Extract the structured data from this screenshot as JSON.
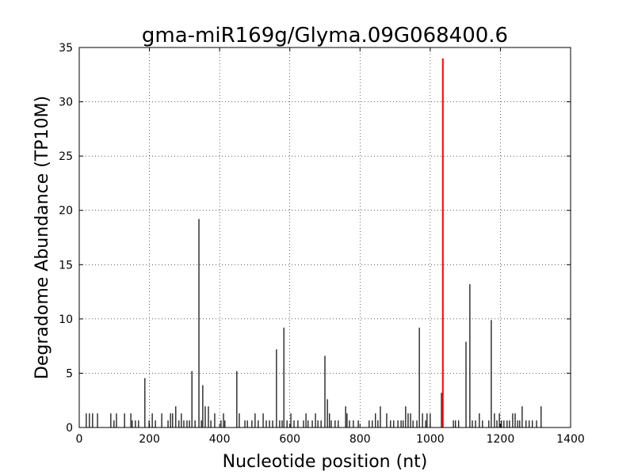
{
  "chart_data": {
    "type": "stem",
    "title": "gma-miR169g/Glyma.09G068400.6",
    "x_label": "Nucleotide position (nt)",
    "y_label": "Degradome Abundance (TP10M)",
    "x": [
      20,
      29,
      38,
      52,
      90,
      99,
      106,
      129,
      147,
      151,
      160,
      169,
      187,
      199,
      208,
      217,
      235,
      253,
      260,
      266,
      275,
      284,
      291,
      298,
      307,
      314,
      321,
      330,
      341,
      348,
      352,
      359,
      368,
      375,
      386,
      404,
      411,
      415,
      449,
      456,
      472,
      479,
      492,
      501,
      510,
      524,
      533,
      542,
      551,
      562,
      571,
      578,
      583,
      592,
      603,
      612,
      623,
      639,
      646,
      652,
      664,
      673,
      680,
      689,
      700,
      707,
      713,
      718,
      729,
      738,
      759,
      763,
      770,
      781,
      795,
      826,
      835,
      844,
      851,
      858,
      876,
      887,
      896,
      908,
      917,
      923,
      930,
      937,
      944,
      951,
      962,
      969,
      978,
      987,
      991,
      1000,
      1032,
      1066,
      1072,
      1081,
      1102,
      1113,
      1120,
      1129,
      1140,
      1149,
      1167,
      1174,
      1183,
      1190,
      1197,
      1203,
      1210,
      1219,
      1226,
      1235,
      1242,
      1249,
      1255,
      1262,
      1273,
      1282,
      1291,
      1303,
      1316
    ],
    "values": [
      1.3,
      1.3,
      1.3,
      1.3,
      1.3,
      0.65,
      1.3,
      1.3,
      1.3,
      0.65,
      0.65,
      0.65,
      4.55,
      0.65,
      1.3,
      0.65,
      1.3,
      0.65,
      1.3,
      1.3,
      1.95,
      0.65,
      1.3,
      0.65,
      0.65,
      0.65,
      5.2,
      0.65,
      19.2,
      0.65,
      3.9,
      1.95,
      1.95,
      0.65,
      1.3,
      0.65,
      1.3,
      0.65,
      5.2,
      1.3,
      0.65,
      0.65,
      0.65,
      1.3,
      0.65,
      1.3,
      0.65,
      0.65,
      0.65,
      7.2,
      0.65,
      0.65,
      9.2,
      0.65,
      1.3,
      0.65,
      0.65,
      0.65,
      1.3,
      0.65,
      0.65,
      1.3,
      0.65,
      0.65,
      6.6,
      2.6,
      1.3,
      0.65,
      0.65,
      0.65,
      1.95,
      1.3,
      0.65,
      0.65,
      0.65,
      0.65,
      0.65,
      1.3,
      0.65,
      1.95,
      1.3,
      0.65,
      0.65,
      0.65,
      0.65,
      0.65,
      1.95,
      1.3,
      1.3,
      0.65,
      0.65,
      9.2,
      1.3,
      0.65,
      1.3,
      1.3,
      3.2,
      0.65,
      0.65,
      0.65,
      7.9,
      13.2,
      0.65,
      0.65,
      1.3,
      0.65,
      0.65,
      9.9,
      1.3,
      0.65,
      1.3,
      0.65,
      0.65,
      0.65,
      0.65,
      1.3,
      1.3,
      0.65,
      0.65,
      1.95,
      0.65,
      0.65,
      0.65,
      0.65,
      1.95
    ],
    "color": "#000000",
    "highlight": {
      "x": [
        1036
      ],
      "values": [
        34
      ],
      "color": "#ff0000"
    },
    "xlim": [
      0,
      1400
    ],
    "xticks": [
      0,
      200,
      400,
      600,
      800,
      1000,
      1200,
      1400
    ],
    "ylim": [
      0,
      35
    ],
    "yticks": [
      0,
      5,
      10,
      15,
      20,
      25,
      30,
      35
    ],
    "grid": true
  }
}
